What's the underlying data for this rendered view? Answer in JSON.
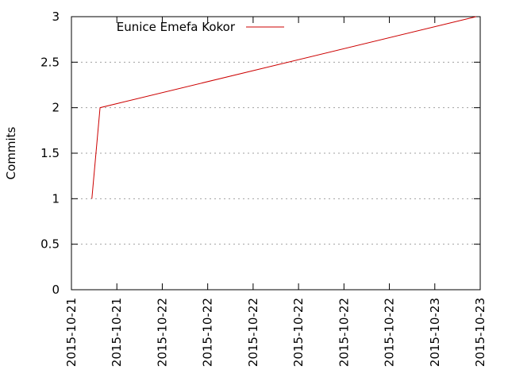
{
  "chart_data": {
    "type": "line",
    "title": "",
    "xlabel": "",
    "ylabel": "Commits",
    "ylim": [
      0,
      3
    ],
    "yticks": [
      0,
      0.5,
      1,
      1.5,
      2,
      2.5,
      3
    ],
    "ytick_labels": [
      "0",
      "0.5",
      "1",
      "1.5",
      "2",
      "2.5",
      "3"
    ],
    "xtick_labels": [
      "2015-10-21",
      "2015-10-21",
      "2015-10-22",
      "2015-10-22",
      "2015-10-22",
      "2015-10-22",
      "2015-10-22",
      "2015-10-22",
      "2015-10-23",
      "2015-10-23"
    ],
    "grid": true,
    "legend_position": "top-left",
    "series": [
      {
        "name": "Eunice Emefa Kokor",
        "color": "#cc0000",
        "points": [
          {
            "x": 0.05,
            "y": 1
          },
          {
            "x": 0.07,
            "y": 2
          },
          {
            "x": 0.99,
            "y": 3
          }
        ]
      }
    ]
  }
}
